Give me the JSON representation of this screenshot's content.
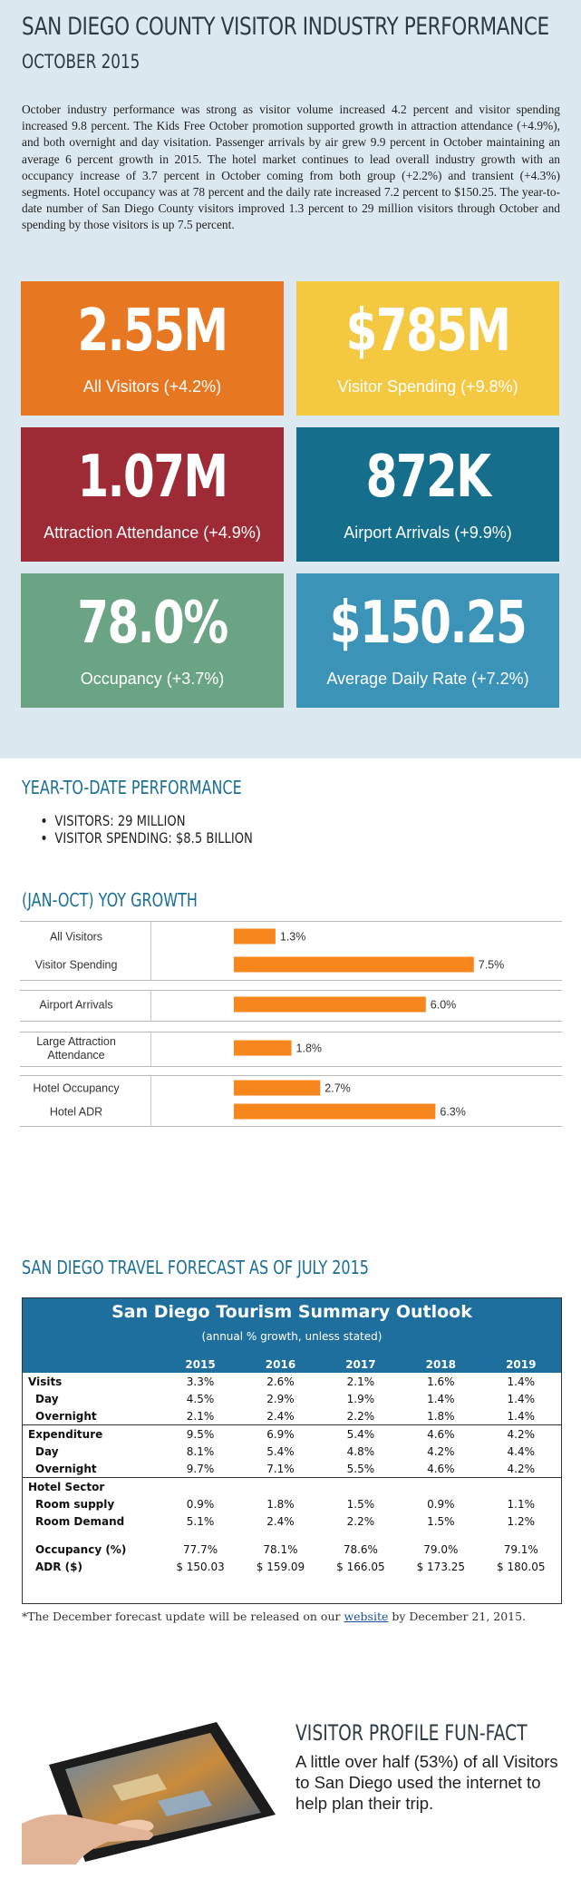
{
  "header": {
    "title": "SAN DIEGO COUNTY VISITOR INDUSTRY PERFORMANCE",
    "subtitle": "OCTOBER 2015",
    "intro": "October industry performance was strong as visitor volume increased 4.2 percent and visitor spending increased 9.8 percent. The Kids Free October promotion supported growth in attraction attendance (+4.9%), and both overnight and day visitation. Passenger arrivals by air grew 9.9 percent in October maintaining an average 6 percent growth in 2015. The hotel market continues to lead overall industry growth with an occupancy increase of 3.7 percent in October coming from both group (+2.2%) and transient (+4.3%) segments. Hotel occupancy was at 78 percent and the daily rate increased 7.2 percent to $150.25. The year-to-date number of San Diego County visitors improved 1.3 percent to 29 million visitors through October and spending by those visitors is up 7.5 percent."
  },
  "stats": [
    {
      "value": "2.55M",
      "label": "All Visitors (+4.2%)",
      "color": "#e87722"
    },
    {
      "value": "$785M",
      "label": "Visitor Spending (+9.8%)",
      "color": "#f5c842"
    },
    {
      "value": "1.07M",
      "label": "Attraction Attendance (+4.9%)",
      "color": "#9e2a36"
    },
    {
      "value": "872K",
      "label": "Airport Arrivals (+9.9%)",
      "color": "#146e8c"
    },
    {
      "value": "78.0%",
      "label": "Occupancy (+3.7%)",
      "color": "#6ba485"
    },
    {
      "value": "$150.25",
      "label": "Average Daily Rate (+7.2%)",
      "color": "#3b93b8"
    }
  ],
  "ytd": {
    "heading": "YEAR-TO-DATE PERFORMANCE",
    "items": [
      "VISITORS: 29 MILLION",
      "VISITOR SPENDING: $8.5 BILLION"
    ]
  },
  "growth_heading": "(JAN-OCT) YOY GROWTH",
  "chart_data": {
    "type": "bar",
    "orientation": "horizontal",
    "categories": [
      "All Visitors",
      "Visitor Spending",
      "Airport Arrivals",
      "Large Attraction Attendance",
      "Hotel Occupancy",
      "Hotel ADR"
    ],
    "category_lines": [
      [
        "All Visitors"
      ],
      [
        "Visitor Spending"
      ],
      [
        "Airport Arrivals"
      ],
      [
        "Large Attraction",
        "Attendance"
      ],
      [
        "Hotel Occupancy"
      ],
      [
        "Hotel ADR"
      ]
    ],
    "values": [
      1.3,
      7.5,
      6.0,
      1.8,
      2.7,
      6.3
    ],
    "labels": [
      "1.3%",
      "7.5%",
      "6.0%",
      "1.8%",
      "2.7%",
      "6.3%"
    ],
    "groups": [
      [
        0,
        1
      ],
      [
        2
      ],
      [
        3
      ],
      [
        4,
        5
      ]
    ],
    "bar_color": "#f7861c",
    "grid": false
  },
  "forecast": {
    "heading": "SAN DIEGO TRAVEL FORECAST AS OF JULY 2015",
    "table_title": "San Diego Tourism Summary Outlook",
    "table_subtitle": "(annual % growth, unless stated)",
    "years": [
      "2015",
      "2016",
      "2017",
      "2018",
      "2019"
    ],
    "rows": [
      {
        "label": "Visits",
        "indent": false,
        "sep": false,
        "values": [
          "3.3%",
          "2.6%",
          "2.1%",
          "1.6%",
          "1.4%"
        ]
      },
      {
        "label": "Day",
        "indent": true,
        "sep": false,
        "values": [
          "4.5%",
          "2.9%",
          "1.9%",
          "1.4%",
          "1.4%"
        ]
      },
      {
        "label": "Overnight",
        "indent": true,
        "sep": false,
        "values": [
          "2.1%",
          "2.4%",
          "2.2%",
          "1.8%",
          "1.4%"
        ]
      },
      {
        "label": "Expenditure",
        "indent": false,
        "sep": true,
        "values": [
          "9.5%",
          "6.9%",
          "5.4%",
          "4.6%",
          "4.2%"
        ]
      },
      {
        "label": "Day",
        "indent": true,
        "sep": false,
        "values": [
          "8.1%",
          "5.4%",
          "4.8%",
          "4.2%",
          "4.4%"
        ]
      },
      {
        "label": "Overnight",
        "indent": true,
        "sep": false,
        "values": [
          "9.7%",
          "7.1%",
          "5.5%",
          "4.6%",
          "4.2%"
        ]
      },
      {
        "label": "Hotel Sector",
        "indent": false,
        "sep": true,
        "values": [
          "",
          "",
          "",
          "",
          ""
        ]
      },
      {
        "label": "Room supply",
        "indent": true,
        "sep": false,
        "values": [
          "0.9%",
          "1.8%",
          "1.5%",
          "0.9%",
          "1.1%"
        ]
      },
      {
        "label": "Room Demand",
        "indent": true,
        "sep": false,
        "values": [
          "5.1%",
          "2.4%",
          "2.2%",
          "1.5%",
          "1.2%"
        ]
      },
      {
        "label": "Occupancy (%)",
        "indent": true,
        "sep": false,
        "gap": true,
        "values": [
          "77.7%",
          "78.1%",
          "78.6%",
          "79.0%",
          "79.1%"
        ]
      },
      {
        "label": "ADR ($)",
        "indent": true,
        "sep": false,
        "values": [
          "$ 150.03",
          "$ 159.09",
          "$ 166.05",
          "$ 173.25",
          "$ 180.05"
        ]
      }
    ],
    "note_prefix": "*The December forecast update will be released on our ",
    "note_link": "website",
    "note_suffix": " by December 21, 2015."
  },
  "funfact": {
    "heading": "VISITOR PROFILE FUN-FACT",
    "text": "A little over half (53%) of all Visitors to San Diego used the internet to help plan their trip."
  }
}
